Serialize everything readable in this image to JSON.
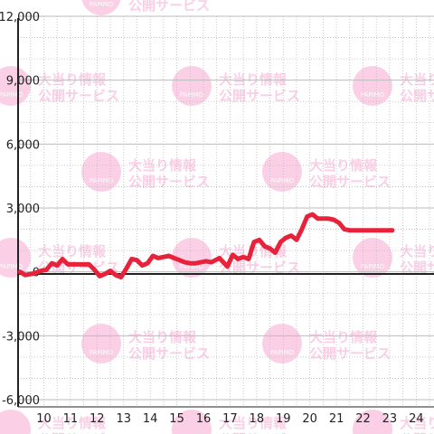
{
  "watermark": {
    "line1": "大当り情報",
    "line2": "公開サービス",
    "logo_text": "PAPIMO",
    "color": "#f7a9d2"
  },
  "colors": {
    "series": "#e8223a",
    "axis": "#222222",
    "grid": "#bbbbbb",
    "background": "#ffffff"
  },
  "chart_data": {
    "type": "line",
    "title": "",
    "xlabel": "",
    "ylabel": "",
    "x_ticks": [
      "10",
      "11",
      "12",
      "13",
      "14",
      "15",
      "16",
      "17",
      "18",
      "19",
      "20",
      "21",
      "22",
      "23",
      "24"
    ],
    "y_ticks": [
      "12,000",
      "9,000",
      "6,000",
      "3,000",
      "0",
      "-3,000",
      "-6,000"
    ],
    "y_tick_values": [
      12000,
      9000,
      6000,
      3000,
      0,
      -3000,
      -6000
    ],
    "xlim": [
      9.1,
      24.6
    ],
    "ylim": [
      -6000,
      12000
    ],
    "grid": true,
    "series": [
      {
        "color": "#e8223a",
        "x": [
          9.1,
          9.3,
          9.6,
          9.9,
          10.1,
          10.3,
          10.5,
          10.7,
          10.9,
          11.1,
          11.4,
          11.7,
          11.9,
          12.1,
          12.3,
          12.5,
          12.7,
          12.9,
          13.1,
          13.3,
          13.5,
          13.7,
          13.9,
          14.1,
          14.3,
          14.5,
          14.7,
          14.9,
          15.1,
          15.3,
          15.5,
          15.7,
          15.9,
          16.1,
          16.3,
          16.6,
          16.9,
          17.1,
          17.3,
          17.5,
          17.7,
          17.9,
          18.1,
          18.3,
          18.5,
          18.7,
          18.9,
          19.1,
          19.3,
          19.5,
          19.7,
          19.9,
          20.1,
          20.3,
          20.5,
          20.7,
          20.9,
          21.1,
          21.3,
          21.5,
          21.7,
          21.9,
          22.1,
          22.3,
          22.5,
          22.7,
          22.9,
          23.1
        ],
        "y": [
          0,
          -150,
          -80,
          50,
          100,
          400,
          300,
          600,
          350,
          350,
          350,
          350,
          100,
          -200,
          -100,
          50,
          -150,
          -250,
          150,
          600,
          550,
          300,
          400,
          750,
          650,
          700,
          750,
          650,
          550,
          450,
          400,
          400,
          450,
          500,
          450,
          650,
          250,
          800,
          600,
          700,
          600,
          1400,
          1500,
          1200,
          1100,
          900,
          1400,
          1600,
          1700,
          1500,
          2000,
          2600,
          2700,
          2500,
          2500,
          2500,
          2450,
          2300,
          2000,
          1950,
          1950,
          1950,
          1950,
          1950,
          1950,
          1950,
          1950,
          1950
        ]
      }
    ]
  }
}
